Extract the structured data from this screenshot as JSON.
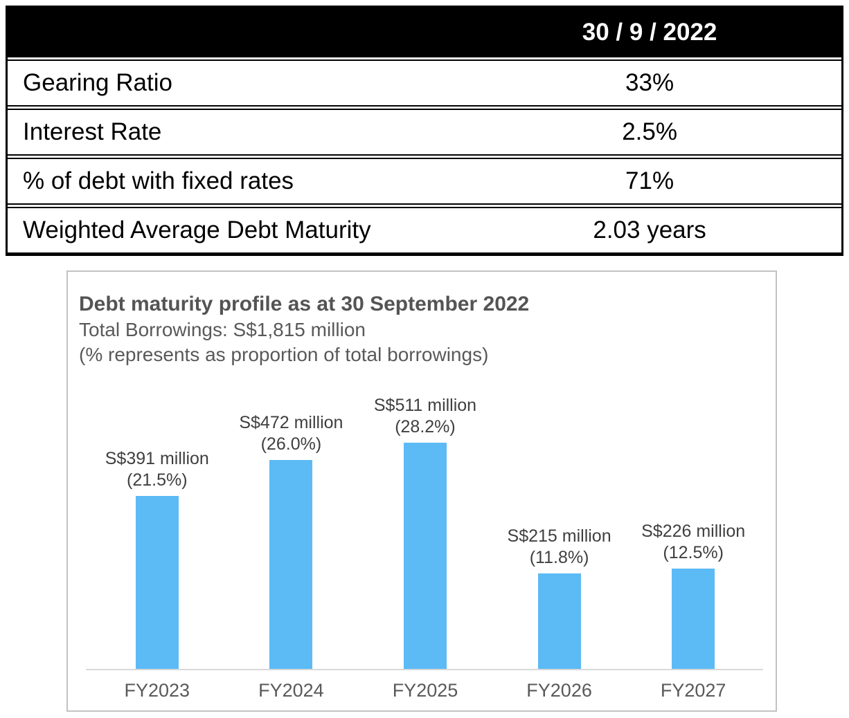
{
  "table": {
    "header": {
      "date_label": "30 / 9 / 2022"
    },
    "rows": [
      {
        "label": "Gearing Ratio",
        "value": "33%"
      },
      {
        "label": "Interest Rate",
        "value": "2.5%"
      },
      {
        "label": "% of debt with fixed rates",
        "value": "71%"
      },
      {
        "label": "Weighted Average Debt Maturity",
        "value": "2.03 years"
      }
    ]
  },
  "chart": {
    "title": "Debt maturity profile as at 30 September 2022",
    "subtitle_total": "Total Borrowings: S$1,815 million",
    "subtitle_note": "(% represents as proportion of total borrowings)"
  },
  "chart_data": {
    "type": "bar",
    "title": "Debt maturity profile as at 30 September 2022",
    "subtitle": "Total Borrowings: S$1,815 million",
    "annotation": "(% represents as proportion of total borrowings)",
    "categories": [
      "FY2023",
      "FY2024",
      "FY2025",
      "FY2026",
      "FY2027"
    ],
    "values": [
      391,
      472,
      511,
      215,
      226
    ],
    "percent_of_total": [
      21.5,
      26.0,
      28.2,
      11.8,
      12.5
    ],
    "value_labels": [
      "S$391 million",
      "S$472 million",
      "S$511 million",
      "S$215 million",
      "S$226 million"
    ],
    "percent_labels": [
      "(21.5%)",
      "(26.0%)",
      "(28.2%)",
      "(11.8%)",
      "(12.5%)"
    ],
    "unit": "S$ million",
    "total": 1815,
    "ylim": [
      0,
      560
    ],
    "grid": false,
    "legend": false,
    "bar_color": "#5cbaf5",
    "axis_line_color": "#d9d9d9"
  },
  "colors": {
    "table_header_bg": "#000000",
    "table_header_text": "#ffffff",
    "bar_blue": "#5cbaf5",
    "chart_text_gray": "#595959"
  }
}
